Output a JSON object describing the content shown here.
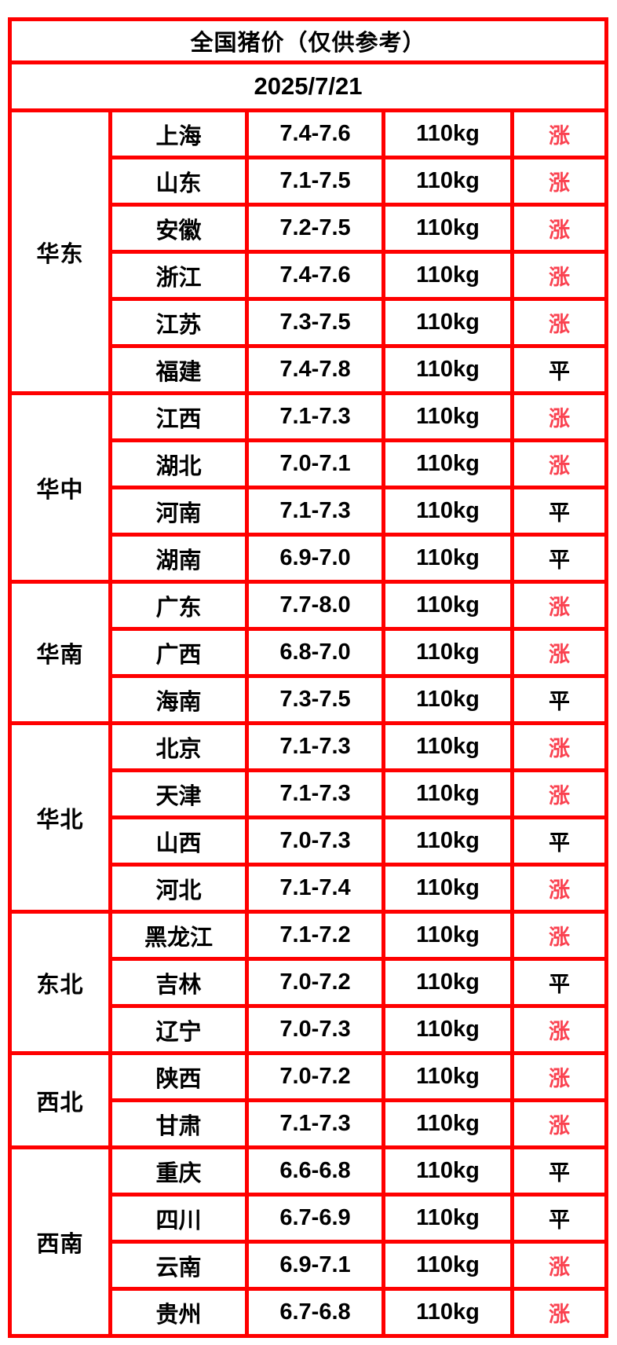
{
  "header": {
    "title": "全国猪价（仅供参考）",
    "date": "2025/7/21"
  },
  "colors": {
    "accent_orange": "#ed6418",
    "border_red": "#ff0000",
    "rise_red": "#fa4250",
    "flat_black": "#000000"
  },
  "status_classes": {
    "涨": "rise",
    "平": "flat"
  },
  "chart_data": {
    "type": "table",
    "title": "全国猪价（仅供参考）",
    "date": "2025/7/21",
    "weight_label": "110kg",
    "regions": [
      {
        "name": "华东",
        "rows": [
          {
            "province": "上海",
            "price": "7.4-7.6",
            "status": "涨"
          },
          {
            "province": "山东",
            "price": "7.1-7.5",
            "status": "涨"
          },
          {
            "province": "安徽",
            "price": "7.2-7.5",
            "status": "涨"
          },
          {
            "province": "浙江",
            "price": "7.4-7.6",
            "status": "涨"
          },
          {
            "province": "江苏",
            "price": "7.3-7.5",
            "status": "涨"
          },
          {
            "province": "福建",
            "price": "7.4-7.8",
            "status": "平"
          }
        ]
      },
      {
        "name": "华中",
        "rows": [
          {
            "province": "江西",
            "price": "7.1-7.3",
            "status": "涨"
          },
          {
            "province": "湖北",
            "price": "7.0-7.1",
            "status": "涨"
          },
          {
            "province": "河南",
            "price": "7.1-7.3",
            "status": "平"
          },
          {
            "province": "湖南",
            "price": "6.9-7.0",
            "status": "平"
          }
        ]
      },
      {
        "name": "华南",
        "rows": [
          {
            "province": "广东",
            "price": "7.7-8.0",
            "status": "涨"
          },
          {
            "province": "广西",
            "price": "6.8-7.0",
            "status": "涨"
          },
          {
            "province": "海南",
            "price": "7.3-7.5",
            "status": "平"
          }
        ]
      },
      {
        "name": "华北",
        "rows": [
          {
            "province": "北京",
            "price": "7.1-7.3",
            "status": "涨"
          },
          {
            "province": "天津",
            "price": "7.1-7.3",
            "status": "涨"
          },
          {
            "province": "山西",
            "price": "7.0-7.3",
            "status": "平"
          },
          {
            "province": "河北",
            "price": "7.1-7.4",
            "status": "涨"
          }
        ]
      },
      {
        "name": "东北",
        "rows": [
          {
            "province": "黑龙江",
            "price": "7.1-7.2",
            "status": "涨"
          },
          {
            "province": "吉林",
            "price": "7.0-7.2",
            "status": "平"
          },
          {
            "province": "辽宁",
            "price": "7.0-7.3",
            "status": "涨"
          }
        ]
      },
      {
        "name": "西北",
        "rows": [
          {
            "province": "陕西",
            "price": "7.0-7.2",
            "status": "涨"
          },
          {
            "province": "甘肃",
            "price": "7.1-7.3",
            "status": "涨"
          }
        ]
      },
      {
        "name": "西南",
        "rows": [
          {
            "province": "重庆",
            "price": "6.6-6.8",
            "status": "平"
          },
          {
            "province": "四川",
            "price": "6.7-6.9",
            "status": "平"
          },
          {
            "province": "云南",
            "price": "6.9-7.1",
            "status": "涨"
          },
          {
            "province": "贵州",
            "price": "6.7-6.8",
            "status": "涨"
          }
        ]
      }
    ]
  }
}
